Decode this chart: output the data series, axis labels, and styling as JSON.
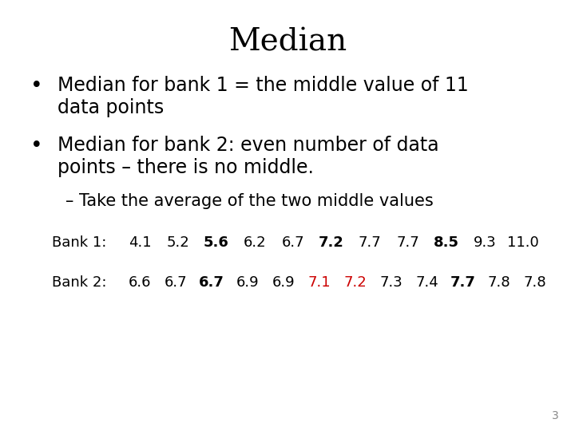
{
  "title": "Median",
  "title_fontsize": 28,
  "title_font": "DejaVu Serif",
  "bg_color": "#ffffff",
  "text_color": "#000000",
  "bullet1_line1": "Median for bank 1 = the middle value of 11",
  "bullet1_line2": "data points",
  "bullet2_line1": "Median for bank 2: even number of data",
  "bullet2_line2": "points – there is no middle.",
  "sub_bullet": "– Take the average of the two middle values",
  "bank1_label": "Bank 1:",
  "bank1_values": [
    "4.1",
    "5.2",
    "5.6",
    "6.2",
    "6.7",
    "7.2",
    "7.7",
    "7.7",
    "8.5",
    "9.3",
    "11.0"
  ],
  "bank1_bold": [
    2,
    5,
    8
  ],
  "bank1_red": [],
  "bank2_label": "Bank 2:",
  "bank2_values": [
    "6.6",
    "6.7",
    "6.7",
    "6.9",
    "6.9",
    "7.1",
    "7.2",
    "7.3",
    "7.4",
    "7.7",
    "7.8",
    "7.8"
  ],
  "bank2_bold": [
    2,
    9
  ],
  "bank2_red": [
    5,
    6
  ],
  "page_number": "3",
  "bullet_fontsize": 17,
  "sub_bullet_fontsize": 15,
  "data_fontsize": 13
}
